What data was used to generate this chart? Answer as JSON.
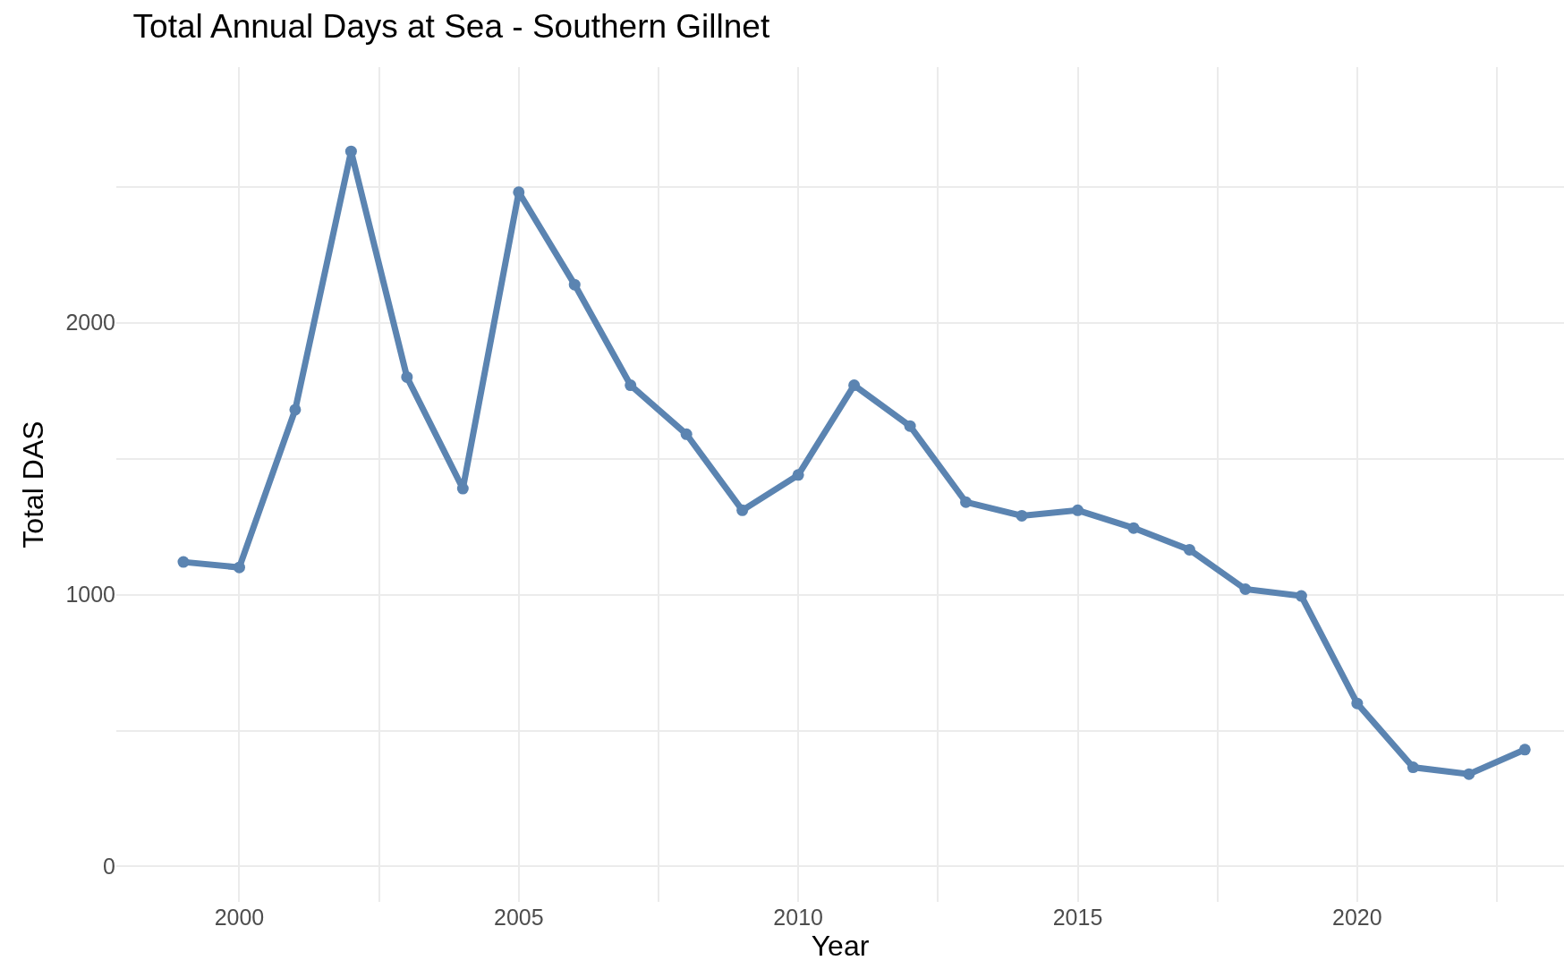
{
  "chart_data": {
    "type": "line",
    "title": "Total Annual Days at Sea - Southern Gillnet",
    "xlabel": "Year",
    "ylabel": "Total DAS",
    "x": [
      1999,
      2000,
      2001,
      2002,
      2003,
      2004,
      2005,
      2006,
      2007,
      2008,
      2009,
      2010,
      2011,
      2012,
      2013,
      2014,
      2015,
      2016,
      2017,
      2018,
      2019,
      2020,
      2021,
      2022,
      2023
    ],
    "series": [
      {
        "color": "#5b84b1",
        "values": [
          1120,
          1100,
          1680,
          2630,
          1800,
          1390,
          2480,
          2140,
          1770,
          1590,
          1310,
          1440,
          1770,
          1620,
          1340,
          1290,
          1310,
          1245,
          1165,
          1020,
          995,
          600,
          365,
          340,
          430
        ]
      }
    ],
    "xlim": [
      1997.8,
      2023.7
    ],
    "ylim": [
      -130,
      2940
    ],
    "xticks": [
      2000,
      {
        "value": 2002.5,
        "label": null
      },
      2005,
      {
        "value": 2007.5,
        "label": null
      },
      2010,
      {
        "value": 2012.5,
        "label": null
      },
      2015,
      {
        "value": 2017.5,
        "label": null
      },
      2020,
      {
        "value": 2022.5,
        "label": null
      }
    ],
    "yticks": [
      0,
      {
        "value": 500,
        "label": null
      },
      1000,
      {
        "value": 1500,
        "label": null
      },
      2000,
      {
        "value": 2500,
        "label": null
      }
    ],
    "grid": true,
    "legend": false,
    "marker": "circle",
    "line_style": "solid"
  }
}
